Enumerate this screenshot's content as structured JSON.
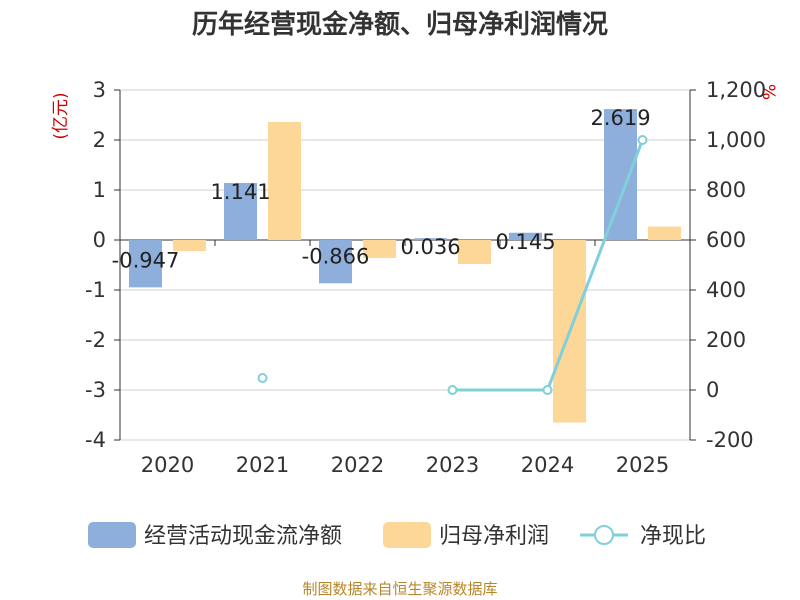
{
  "chart_data": {
    "type": "bar",
    "title": "历年经营现金净额、归母净利润情况",
    "categories": [
      "2020",
      "2021",
      "2022",
      "2023",
      "2024",
      "2025"
    ],
    "left_axis": {
      "unit": "(亿元)",
      "range": [
        -4,
        3
      ],
      "ticks": [
        "3",
        "2",
        "1",
        "0",
        "-1",
        "-2",
        "-3",
        "-4"
      ]
    },
    "right_axis": {
      "unit": "%",
      "range": [
        -200,
        1200
      ],
      "ticks": [
        "1,200",
        "1,000",
        "800",
        "600",
        "400",
        "200",
        "0",
        "-200"
      ]
    },
    "series": [
      {
        "name": "经营活动现金流净额",
        "kind": "bar",
        "axis": "left",
        "color": "#8eaedb",
        "values": [
          -0.947,
          1.141,
          -0.866,
          0.036,
          0.145,
          2.619
        ],
        "labels": [
          "-0.947",
          "1.141",
          "-0.866",
          "0.036",
          "0.145",
          "2.619"
        ]
      },
      {
        "name": "归母净利润",
        "kind": "bar",
        "axis": "left",
        "color": "#fdd797",
        "values": [
          -0.22,
          2.36,
          -0.36,
          -0.48,
          -3.65,
          0.27
        ]
      },
      {
        "name": "净现比",
        "kind": "line",
        "axis": "right",
        "color": "#7fd0da",
        "values": [
          null,
          48,
          null,
          0,
          0,
          1000
        ]
      }
    ],
    "grid": true,
    "legend_position": "bottom"
  },
  "source": "制图数据来自恒生聚源数据库"
}
